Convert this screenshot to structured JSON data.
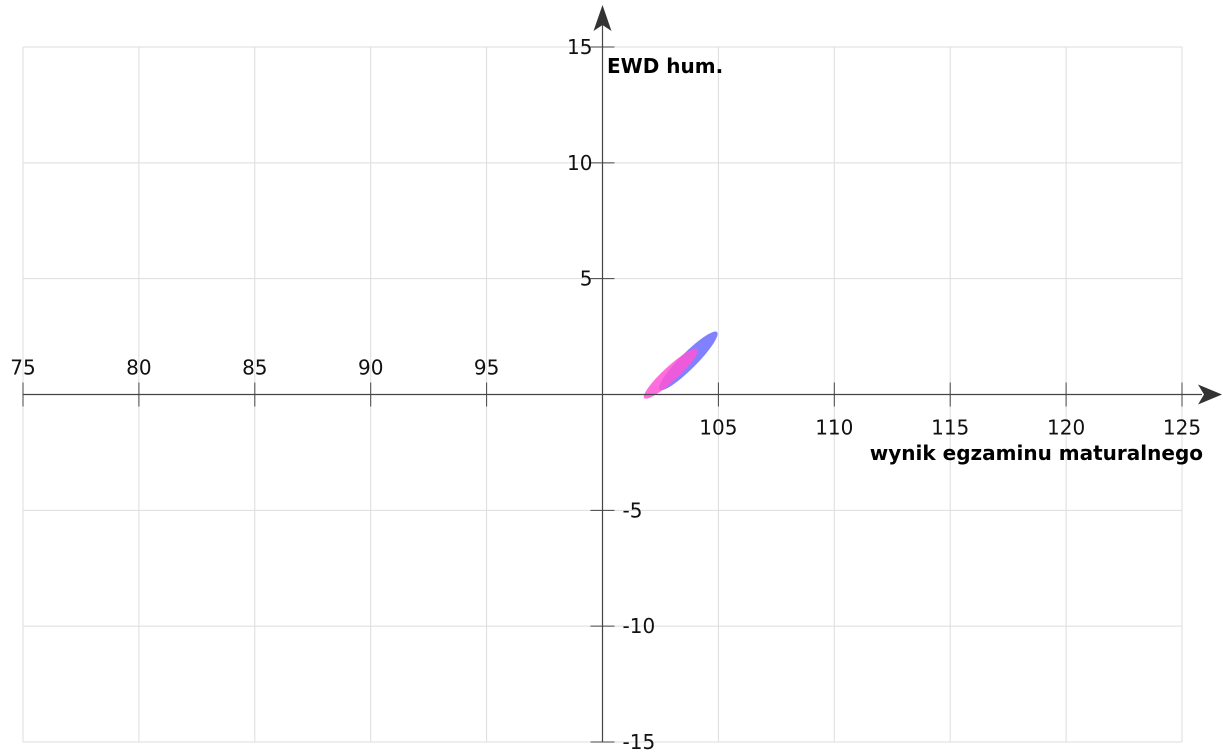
{
  "chart_data": {
    "type": "scatter",
    "title": "",
    "xlabel": "wynik egzaminu maturalnego",
    "ylabel": "EWD hum.",
    "xlim": [
      75,
      125
    ],
    "ylim": [
      -15,
      15
    ],
    "x_ticks": [
      75,
      80,
      85,
      90,
      95,
      105,
      110,
      115,
      120,
      125
    ],
    "y_ticks": [
      15,
      10,
      5,
      -5,
      -10,
      -15
    ],
    "grid": true,
    "legend": "none",
    "series": [
      {
        "shape": "ellipse",
        "center": [
          103.7,
          1.45
        ],
        "x_extent": [
          102.5,
          105.2
        ],
        "y_extent": [
          0.4,
          3.1
        ],
        "color": "#6b6bff"
      },
      {
        "shape": "ellipse",
        "center": [
          102.95,
          0.9
        ],
        "x_extent": [
          101.6,
          104.1
        ],
        "y_extent": [
          -0.2,
          2.1
        ],
        "color": "#ff55d6"
      }
    ]
  }
}
